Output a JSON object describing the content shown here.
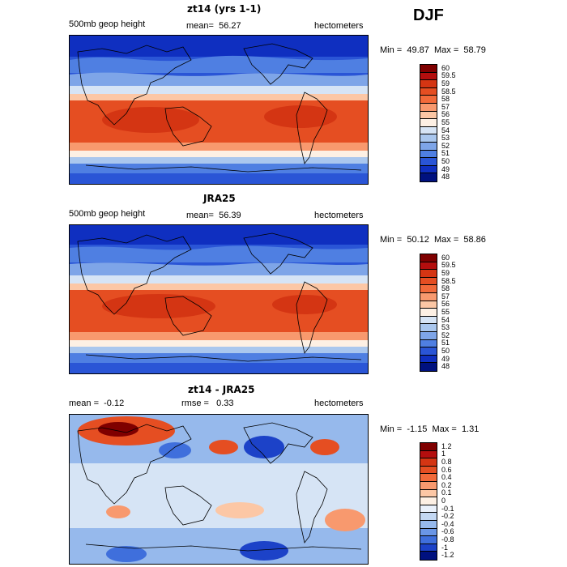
{
  "season": "DJF",
  "chart_data": [
    {
      "type": "heatmap",
      "title": "zt14 (yrs 1-1)",
      "field_label": "500mb geop height",
      "mean_label": "mean=",
      "mean": "56.27",
      "units": "hectometers",
      "min_label": "Min =",
      "min": "49.87",
      "max_label": "Max =",
      "max": "58.79",
      "colorbar_levels": [
        "60",
        "59.5",
        "59",
        "58.5",
        "58",
        "57",
        "56",
        "55",
        "54",
        "53",
        "52",
        "51",
        "50",
        "49",
        "48"
      ],
      "colors": [
        "#7f0000",
        "#b40e0e",
        "#d43513",
        "#e54e22",
        "#f26a3a",
        "#f8996e",
        "#fcc7a5",
        "#fdf0e4",
        "#d6e4f5",
        "#aac7ee",
        "#7ea5e8",
        "#4f7fe2",
        "#2a55d6",
        "#0f2fc0",
        "#00117f"
      ]
    },
    {
      "type": "heatmap",
      "title": "JRA25",
      "field_label": "500mb geop height",
      "mean_label": "mean=",
      "mean": "56.39",
      "units": "hectometers",
      "min_label": "Min =",
      "min": "50.12",
      "max_label": "Max =",
      "max": "58.86",
      "colorbar_levels": [
        "60",
        "59.5",
        "59",
        "58.5",
        "58",
        "57",
        "56",
        "55",
        "54",
        "53",
        "52",
        "51",
        "50",
        "49",
        "48"
      ],
      "colors": [
        "#7f0000",
        "#b40e0e",
        "#d43513",
        "#e54e22",
        "#f26a3a",
        "#f8996e",
        "#fcc7a5",
        "#fdf0e4",
        "#d6e4f5",
        "#aac7ee",
        "#7ea5e8",
        "#4f7fe2",
        "#2a55d6",
        "#0f2fc0",
        "#00117f"
      ]
    },
    {
      "type": "heatmap",
      "title": "zt14 - JRA25",
      "field_label": "mean =",
      "mean": "-0.12",
      "rmse_label": "rmse =",
      "rmse": "0.33",
      "units": "hectometers",
      "min_label": "Min =",
      "min": "-1.15",
      "max_label": "Max =",
      "max": "1.31",
      "colorbar_levels": [
        "1.2",
        "1",
        "0.8",
        "0.6",
        "0.4",
        "0.2",
        "0.1",
        "0",
        "-0.1",
        "-0.2",
        "-0.4",
        "-0.6",
        "-0.8",
        "-1",
        "-1.2"
      ],
      "colors": [
        "#7f0000",
        "#b40e0e",
        "#d43513",
        "#e54e22",
        "#f26a3a",
        "#f8996e",
        "#fcc7a5",
        "#fdf0e4",
        "#eaf1fb",
        "#c3d8f3",
        "#96b9ec",
        "#6a96e6",
        "#3f6fdc",
        "#1c42c8",
        "#00117f"
      ]
    }
  ]
}
